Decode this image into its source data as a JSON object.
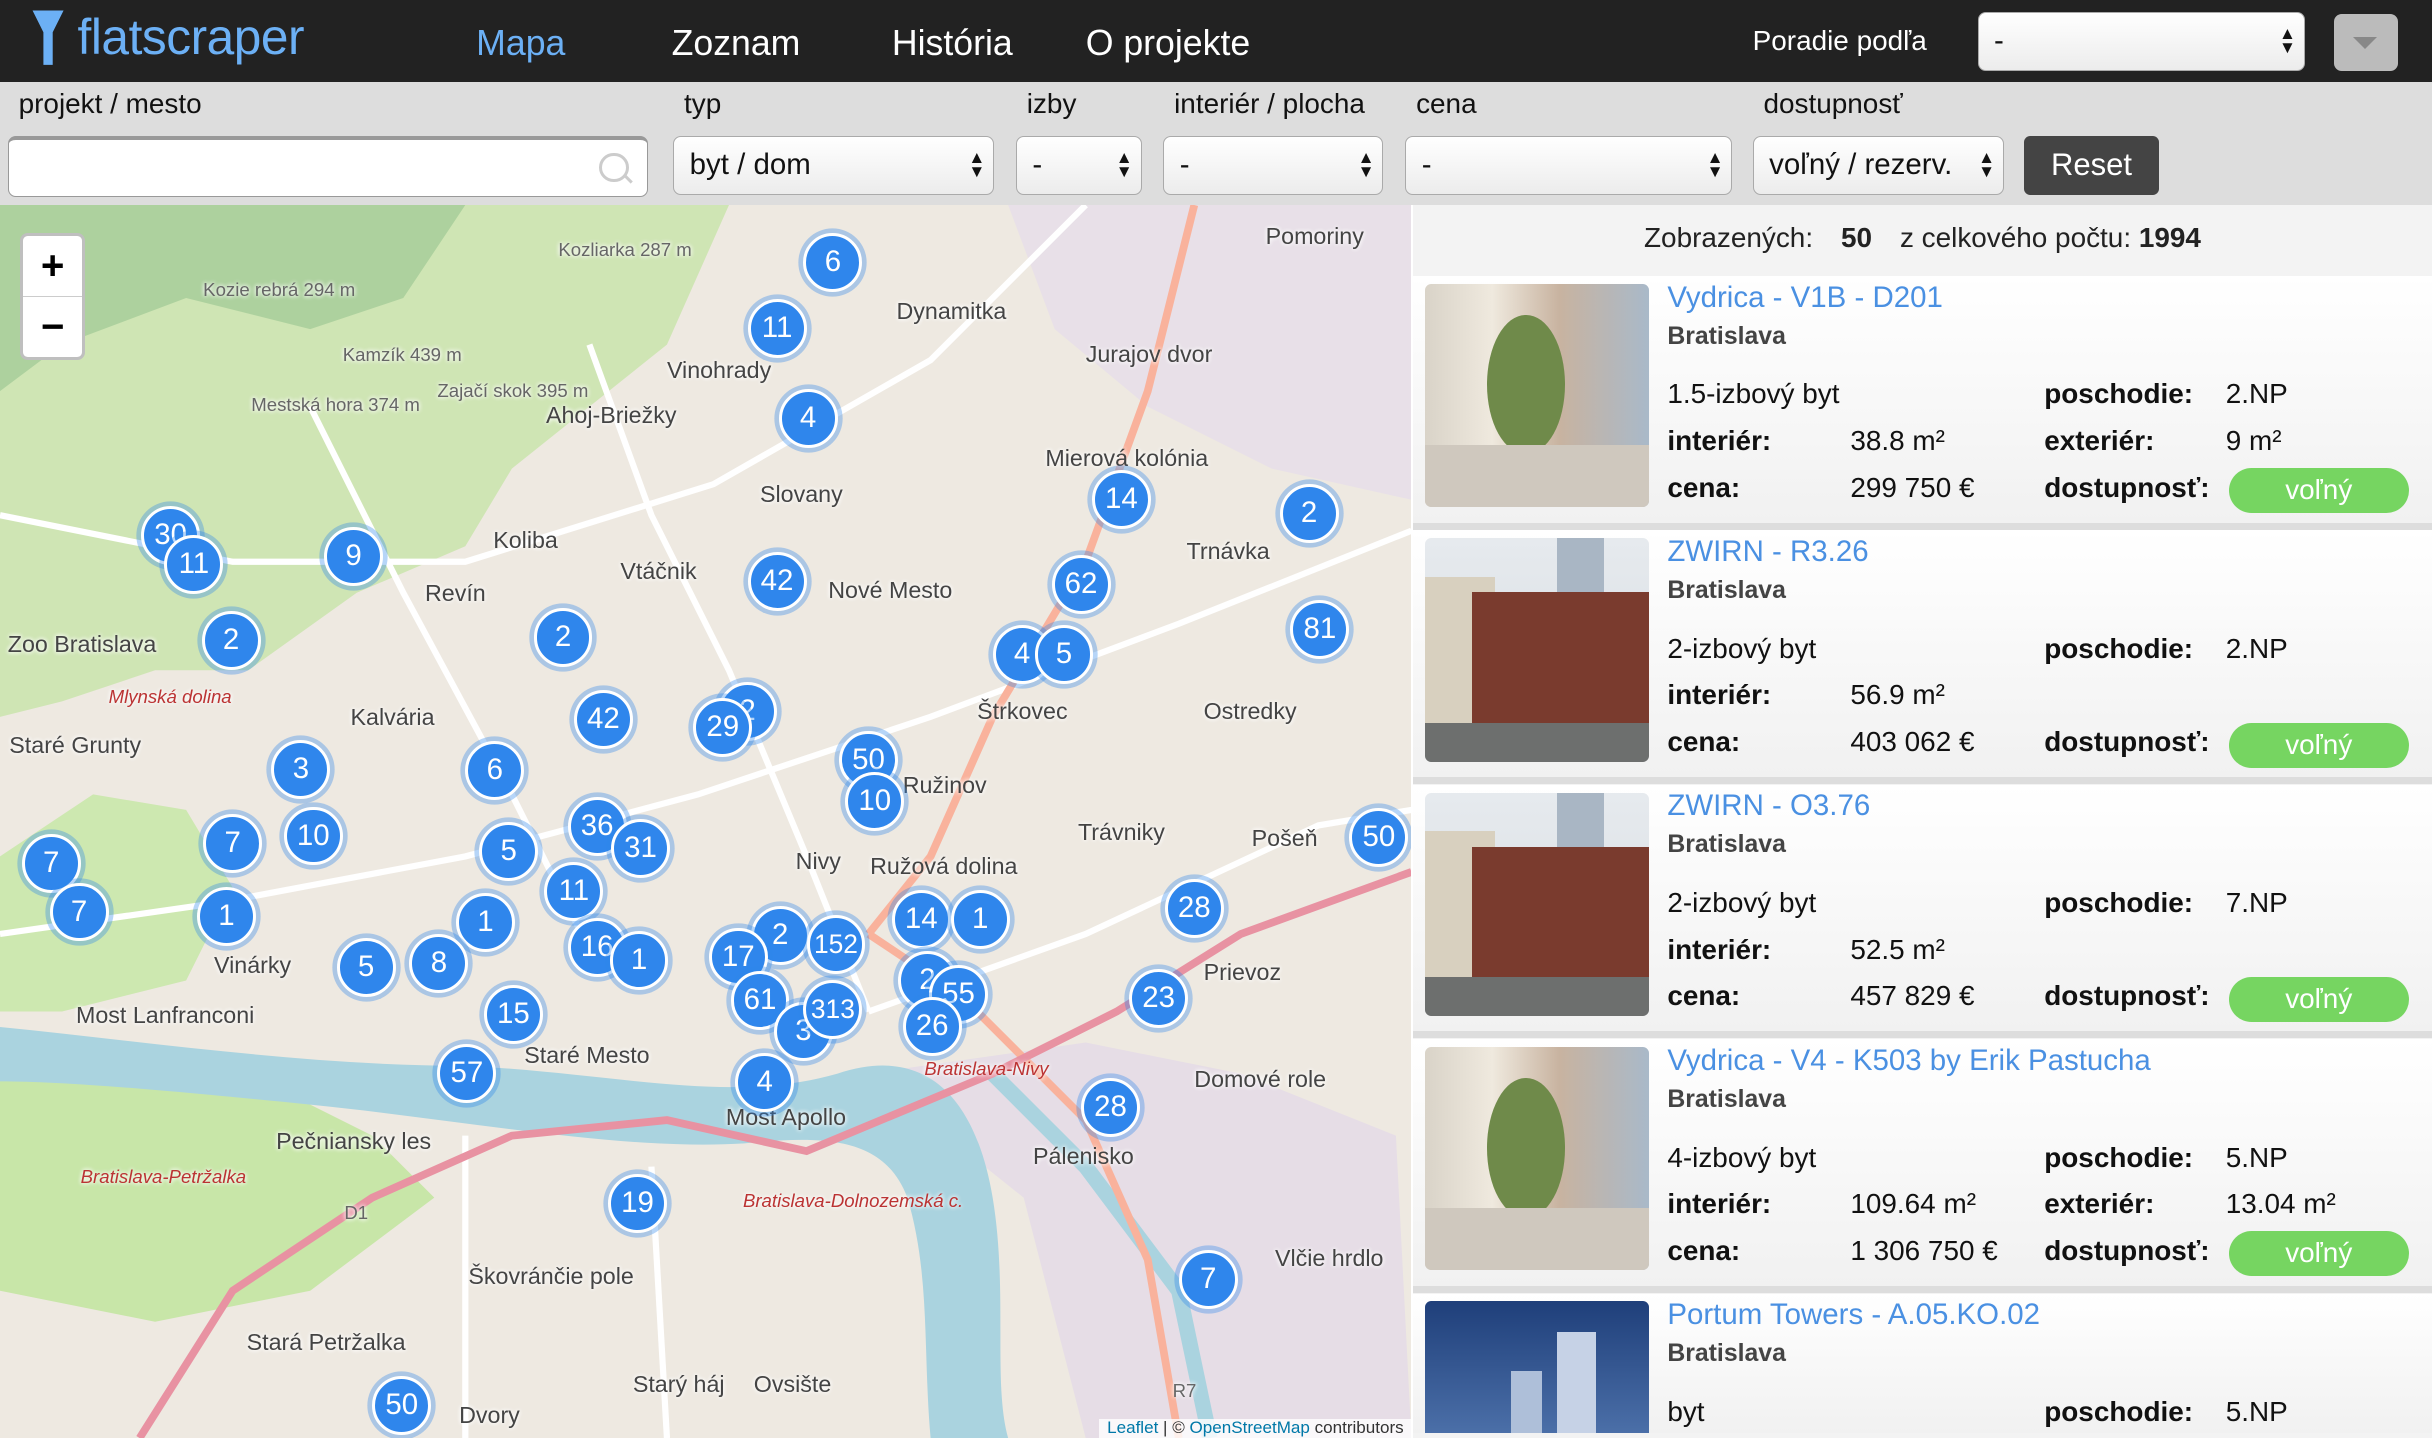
{
  "header": {
    "logo": "flatscraper",
    "nav": [
      {
        "label": "Mapa",
        "active": true
      },
      {
        "label": "Zoznam"
      },
      {
        "label": "História"
      },
      {
        "label": "O projekte"
      }
    ],
    "sort_label": "Poradie podľa",
    "sort_value": "-"
  },
  "filters": {
    "project_label": "projekt / mesto",
    "project_value": "",
    "type_label": "typ",
    "type_value": "byt / dom",
    "rooms_label": "izby",
    "rooms_value": "-",
    "area_label": "interiér / plocha",
    "area_value": "-",
    "price_label": "cena",
    "price_value": "-",
    "availability_label": "dostupnosť",
    "availability_value": "voľný / rezerv.",
    "reset_label": "Reset"
  },
  "results": {
    "shown_label": "Zobrazených:",
    "shown": "50",
    "total_label": "z celkového počtu:",
    "total": "1994"
  },
  "listings": [
    {
      "title": "Vydrica - V1B - D201",
      "city": "Bratislava",
      "type": "1.5-izbový byt",
      "floor_label": "poschodie:",
      "floor": "2.NP",
      "interior_label": "interiér:",
      "interior": "38.8 m²",
      "exterior_label": "exteriér:",
      "exterior": "9 m²",
      "price_label": "cena:",
      "price": "299 750 €",
      "availability_label": "dostupnosť:",
      "availability": "voľný",
      "photo": "light"
    },
    {
      "title": "ZWIRN - R3.26",
      "city": "Bratislava",
      "type": "2-izbový byt",
      "floor_label": "poschodie:",
      "floor": "2.NP",
      "interior_label": "interiér:",
      "interior": "56.9 m²",
      "price_label": "cena:",
      "price": "403 062 €",
      "availability_label": "dostupnosť:",
      "availability": "voľný",
      "photo": "brick"
    },
    {
      "title": "ZWIRN - O3.76",
      "city": "Bratislava",
      "type": "2-izbový byt",
      "floor_label": "poschodie:",
      "floor": "7.NP",
      "interior_label": "interiér:",
      "interior": "52.5 m²",
      "price_label": "cena:",
      "price": "457 829 €",
      "availability_label": "dostupnosť:",
      "availability": "voľný",
      "photo": "brick"
    },
    {
      "title": "Vydrica - V4 - K503 by Erik Pastucha",
      "city": "Bratislava",
      "type": "4-izbový byt",
      "floor_label": "poschodie:",
      "floor": "5.NP",
      "interior_label": "interiér:",
      "interior": "109.64 m²",
      "exterior_label": "exteriér:",
      "exterior": "13.04 m²",
      "price_label": "cena:",
      "price": "1 306 750 €",
      "availability_label": "dostupnosť:",
      "availability": "voľný",
      "photo": "light"
    },
    {
      "title": "Portum Towers - A.05.KO.02",
      "city": "Bratislava",
      "type": "byt",
      "floor_label": "poschodie:",
      "floor": "5.NP",
      "photo": "night"
    }
  ],
  "map": {
    "zoom_in": "+",
    "zoom_out": "−",
    "attribution_leaflet": "Leaflet",
    "attribution_sep": " | © ",
    "attribution_osm": "OpenStreetMap",
    "attribution_tail": " contributors",
    "clusters": [
      6,
      11,
      4,
      14,
      2,
      30,
      11,
      9,
      2,
      2,
      42,
      62,
      4,
      5,
      81,
      42,
      2,
      29,
      50,
      10,
      3,
      6,
      36,
      31,
      7,
      10,
      5,
      7,
      7,
      1,
      11,
      1,
      16,
      1,
      5,
      8,
      2,
      152,
      14,
      1,
      17,
      50,
      28,
      15,
      61,
      3,
      313,
      2,
      55,
      26,
      23,
      57,
      4,
      28,
      19,
      7,
      50
    ],
    "labels": [
      "Pomoriny",
      "Dynamitka",
      "Jurajov dvor",
      "Vinohrady",
      "Ahoj-Briežky",
      "Slovany",
      "Mierová kolónia",
      "Trnávka",
      "Nové Mesto",
      "Koliba",
      "Vtáčnik",
      "Revín",
      "Zoo Bratislava",
      "Kalvária",
      "Staré Grunty",
      "Štrkovec",
      "Ostredky",
      "Ružinov",
      "Trávniky",
      "Nivy",
      "Ružová dolina",
      "Pošeň",
      "Prievoz",
      "Vinárky",
      "Most Lanfranconi",
      "Staré Mesto",
      "Most Apollo",
      "Domové role",
      "Pálenisko",
      "Pečniansky les",
      "Škovránčie pole",
      "Stará Petržalka",
      "Starý háj",
      "Ovsište",
      "Dvory",
      "Vlčie hrdlo",
      "Kozie rebrá 294 m",
      "Kamzík 439 m",
      "Mestská hora 374 m",
      "Zajačí skok 395 m",
      "Kozliarka 287 m",
      "Mlynská dolina",
      "Bratislava-Nivy",
      "Bratislava-Petržalka",
      "Bratislava-Dolnozemská c.",
      "R7",
      "D1"
    ]
  }
}
